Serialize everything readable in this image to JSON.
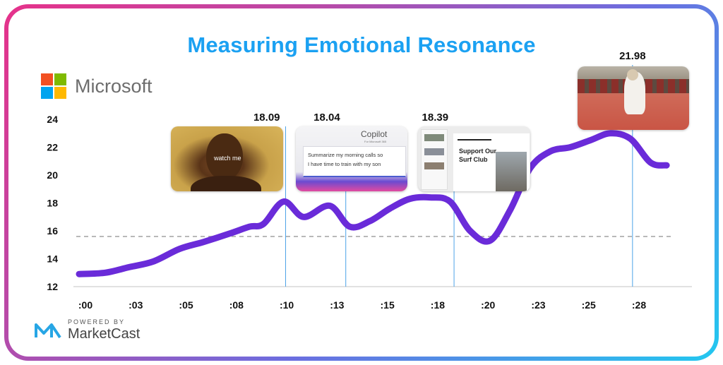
{
  "title": "Measuring Emotional Resonance",
  "brand": {
    "name": "Microsoft",
    "colors": [
      "#f25022",
      "#7fba00",
      "#00a4ef",
      "#ffb900"
    ]
  },
  "powered": {
    "label": "POWERED BY",
    "name": "MarketCast"
  },
  "chart_data": {
    "type": "line",
    "title": "Measuring Emotional Resonance",
    "xlabel": "",
    "ylabel": "",
    "categories": [
      ":00",
      ":03",
      ":05",
      ":08",
      ":10",
      ":13",
      ":15",
      ":18",
      ":20",
      ":23",
      ":25",
      ":28"
    ],
    "yticks": [
      12,
      14,
      16,
      18,
      20,
      22,
      24
    ],
    "ylim": [
      12,
      24
    ],
    "xlim": [
      0,
      30
    ],
    "baseline": 15.6,
    "series": [
      {
        "color": "#6a2bd9",
        "x": [
          0,
          1.3,
          2.5,
          3.7,
          5,
          6.2,
          7.5,
          8.5,
          9.2,
          10.2,
          11.2,
          12.5,
          13.5,
          14.5,
          15.5,
          16.5,
          17.5,
          18.5,
          19.5,
          20.5,
          21.5,
          22.5,
          23.5,
          24.5,
          25.5,
          26.5,
          27.5,
          28.5,
          29.3
        ],
        "y": [
          12.9,
          13.0,
          13.4,
          13.8,
          14.7,
          15.2,
          15.8,
          16.3,
          16.5,
          18.1,
          17.0,
          17.8,
          16.3,
          16.7,
          17.6,
          18.3,
          18.4,
          18.1,
          16.0,
          15.3,
          17.5,
          20.5,
          21.7,
          22.0,
          22.5,
          23.0,
          22.6,
          20.9,
          20.7
        ]
      }
    ],
    "markers": [
      {
        "x": 10.3,
        "value": "18.09"
      },
      {
        "x": 13.3,
        "value": "18.04"
      },
      {
        "x": 18.7,
        "value": "18.39"
      },
      {
        "x": 27.6,
        "value": "21.98"
      }
    ]
  },
  "thumbnails": [
    {
      "caption": "watch me"
    },
    {
      "app": "Copilot",
      "subtitle": "For Microsoft 365",
      "prompt_line1": "Summarize my morning calls so",
      "prompt_line2": "I have time to train with my son"
    },
    {
      "heading_line1": "Support Our",
      "heading_line2": "Surf Club"
    },
    {}
  ]
}
